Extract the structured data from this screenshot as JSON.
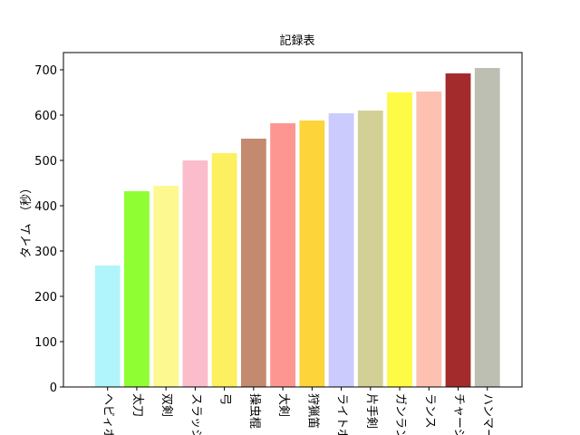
{
  "chart_data": {
    "type": "bar",
    "title": "記録表",
    "y_label": "タイム　（秒）",
    "categories": [
      "ヘビィボウ",
      "太刀",
      "双剣",
      "スラッシュ",
      "弓",
      "操虫棍",
      "大剣",
      "狩猟笛",
      "ライトボウ",
      "片手剣",
      "ガンランス",
      "ランス",
      "チャージ",
      "ハンマー"
    ],
    "values": [
      268,
      432,
      444,
      500,
      516,
      548,
      582,
      588,
      604,
      610,
      650,
      652,
      692,
      704
    ],
    "colors": [
      "#b0f5fb",
      "#8ffe33",
      "#fdf88f",
      "#fbbdcb",
      "#fdf060",
      "#c48a70",
      "#fd9591",
      "#fdd43a",
      "#cccbfd",
      "#d3d096",
      "#fdfb45",
      "#fdc0b1",
      "#a32b2b",
      "#bebfb3"
    ],
    "ylim": [
      0,
      738
    ],
    "yticks": [
      0,
      100,
      200,
      300,
      400,
      500,
      600,
      700
    ]
  }
}
